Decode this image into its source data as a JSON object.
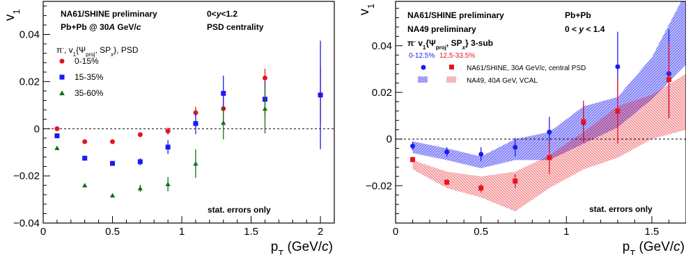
{
  "chart_data": [
    {
      "type": "scatter",
      "xlabel": "p_T (GeV/c)",
      "ylabel": "v_1",
      "xlim": [
        0,
        2.1
      ],
      "ylim": [
        -0.04,
        0.054
      ],
      "x_ticks": [
        {
          "v": 0,
          "label": "0"
        },
        {
          "v": 0.5,
          "label": "0.5"
        },
        {
          "v": 1,
          "label": "1"
        },
        {
          "v": 1.5,
          "label": "1.5"
        },
        {
          "v": 2,
          "label": "2"
        }
      ],
      "y_ticks": [
        {
          "v": -0.04,
          "label": "−0.04"
        },
        {
          "v": -0.02,
          "label": "−0.02"
        },
        {
          "v": 0,
          "label": "0"
        },
        {
          "v": 0.02,
          "label": "0.02"
        },
        {
          "v": 0.04,
          "label": "0.04"
        }
      ],
      "header": {
        "line1": "NA61/SHINE preliminary",
        "line2": "Pb+Pb @ 30A GeV/c",
        "line3": "0<y<1.2",
        "line4": "PSD centrality"
      },
      "legend_title": "π⁻, v₁{Ψproj, SPx}, PSD",
      "note": "stat. errors only",
      "series": [
        {
          "name": "0-15%",
          "marker": "circle",
          "color": "#e8141b",
          "points": [
            {
              "x": 0.1,
              "y": 0.0,
              "err": 0.0
            },
            {
              "x": 0.3,
              "y": -0.0055,
              "err": 0.0
            },
            {
              "x": 0.5,
              "y": -0.0055,
              "err": 0.0
            },
            {
              "x": 0.7,
              "y": -0.0025,
              "err": 0.0
            },
            {
              "x": 0.9,
              "y": -0.001,
              "err": 0.0015
            },
            {
              "x": 1.1,
              "y": 0.0068,
              "err": 0.0025
            },
            {
              "x": 1.3,
              "y": 0.0085,
              "err": 0.0055
            },
            {
              "x": 1.6,
              "y": 0.0215,
              "err": 0.004
            },
            {
              "x": 2.0,
              "y": 0.0143,
              "err": 0.012
            }
          ]
        },
        {
          "name": "15-35%",
          "marker": "square",
          "color": "#1a1af5",
          "points": [
            {
              "x": 0.1,
              "y": -0.003,
              "err": 0.0
            },
            {
              "x": 0.3,
              "y": -0.0125,
              "err": 0.0
            },
            {
              "x": 0.5,
              "y": -0.0147,
              "err": 0.0
            },
            {
              "x": 0.7,
              "y": -0.014,
              "err": 0.0015
            },
            {
              "x": 0.9,
              "y": -0.0078,
              "err": 0.003
            },
            {
              "x": 1.1,
              "y": 0.0022,
              "err": 0.0045
            },
            {
              "x": 1.3,
              "y": 0.015,
              "err": 0.0075
            },
            {
              "x": 1.6,
              "y": 0.0125,
              "err": 0.0075
            },
            {
              "x": 2.0,
              "y": 0.0143,
              "err": 0.023
            }
          ]
        },
        {
          "name": "35-60%",
          "marker": "triangle",
          "color": "#136f13",
          "points": [
            {
              "x": 0.1,
              "y": -0.0082,
              "err": 0.0
            },
            {
              "x": 0.3,
              "y": -0.024,
              "err": 0.0
            },
            {
              "x": 0.5,
              "y": -0.0283,
              "err": 0.0
            },
            {
              "x": 0.7,
              "y": -0.0253,
              "err": 0.0015
            },
            {
              "x": 0.9,
              "y": -0.0235,
              "err": 0.003
            },
            {
              "x": 1.1,
              "y": -0.0148,
              "err": 0.006
            },
            {
              "x": 1.3,
              "y": 0.0025,
              "err": 0.007
            },
            {
              "x": 1.6,
              "y": 0.0085,
              "err": 0.0105
            }
          ]
        }
      ]
    },
    {
      "type": "scatter",
      "xlabel": "p_T (GeV/c)",
      "ylabel": "v_1",
      "xlim": [
        0,
        1.7
      ],
      "ylim": [
        -0.036,
        0.059
      ],
      "x_ticks": [
        {
          "v": 0,
          "label": "0"
        },
        {
          "v": 0.5,
          "label": "0.5"
        },
        {
          "v": 1,
          "label": "1"
        },
        {
          "v": 1.5,
          "label": "1.5"
        }
      ],
      "y_ticks": [
        {
          "v": -0.02,
          "label": "−0.02"
        },
        {
          "v": 0,
          "label": "0"
        },
        {
          "v": 0.02,
          "label": "0.02"
        },
        {
          "v": 0.04,
          "label": "0.04"
        }
      ],
      "header": {
        "line1": "NA61/SHINE preliminary",
        "line2": "NA49 preliminary",
        "line3": "Pb+Pb",
        "line4": "0 < y < 1.4"
      },
      "legend_title": "π⁻ v₁{Ψproj, SPx} 3-sub",
      "centrality_labels": [
        {
          "text": "0-12.5%",
          "color": "#1a1af5"
        },
        {
          "text": "12.5-33.5%",
          "color": "#e8141b"
        }
      ],
      "legend_entries": {
        "points": "NA61/SHINE, 30A GeV/c, central PSD",
        "bands": "NA49, 40A GeV, VCAL"
      },
      "note": "stat. errors only",
      "series": [
        {
          "name": "0-12.5%",
          "marker": "circle",
          "color": "#1a1af5",
          "points": [
            {
              "x": 0.1,
              "y": -0.003,
              "err": 0.0018
            },
            {
              "x": 0.3,
              "y": -0.0055,
              "err": 0.002
            },
            {
              "x": 0.5,
              "y": -0.0065,
              "err": 0.003
            },
            {
              "x": 0.7,
              "y": -0.0035,
              "err": 0.004
            },
            {
              "x": 0.9,
              "y": 0.003,
              "err": 0.0065
            },
            {
              "x": 1.1,
              "y": 0.007,
              "err": 0.008
            },
            {
              "x": 1.3,
              "y": 0.031,
              "err": 0.015
            },
            {
              "x": 1.6,
              "y": 0.028,
              "err": 0.019
            }
          ]
        },
        {
          "name": "12.5-33.5%",
          "marker": "square",
          "color": "#e8141b",
          "points": [
            {
              "x": 0.1,
              "y": -0.0088,
              "err": 0.0012
            },
            {
              "x": 0.3,
              "y": -0.0185,
              "err": 0.0012
            },
            {
              "x": 0.5,
              "y": -0.021,
              "err": 0.0018
            },
            {
              "x": 0.7,
              "y": -0.018,
              "err": 0.003
            },
            {
              "x": 0.9,
              "y": -0.008,
              "err": 0.007
            },
            {
              "x": 1.1,
              "y": 0.0075,
              "err": 0.009
            },
            {
              "x": 1.3,
              "y": 0.012,
              "err": 0.014
            },
            {
              "x": 1.6,
              "y": 0.0255,
              "err": 0.016
            }
          ]
        }
      ],
      "bands": [
        {
          "name": "0-12.5%",
          "color": "#1a1af5",
          "x": [
            0.1,
            0.3,
            0.5,
            0.7,
            0.9,
            1.1,
            1.3,
            1.5,
            1.7
          ],
          "upper": [
            -0.001,
            -0.004,
            -0.0075,
            0.0,
            0.003,
            0.014,
            0.018,
            0.035,
            0.063
          ],
          "lower": [
            -0.006,
            -0.009,
            -0.0125,
            -0.009,
            -0.009,
            -0.002,
            0.005,
            0.017,
            0.032
          ]
        },
        {
          "name": "12.5-33.5%",
          "color": "#e8141b",
          "x": [
            0.1,
            0.3,
            0.5,
            0.7,
            0.9,
            1.1,
            1.3,
            1.5,
            1.7
          ],
          "upper": [
            -0.009,
            -0.014,
            -0.016,
            -0.014,
            -0.007,
            0.003,
            0.014,
            0.019,
            0.028
          ],
          "lower": [
            -0.013,
            -0.021,
            -0.025,
            -0.031,
            -0.021,
            -0.013,
            -0.008,
            0.0,
            0.004
          ]
        }
      ]
    }
  ]
}
